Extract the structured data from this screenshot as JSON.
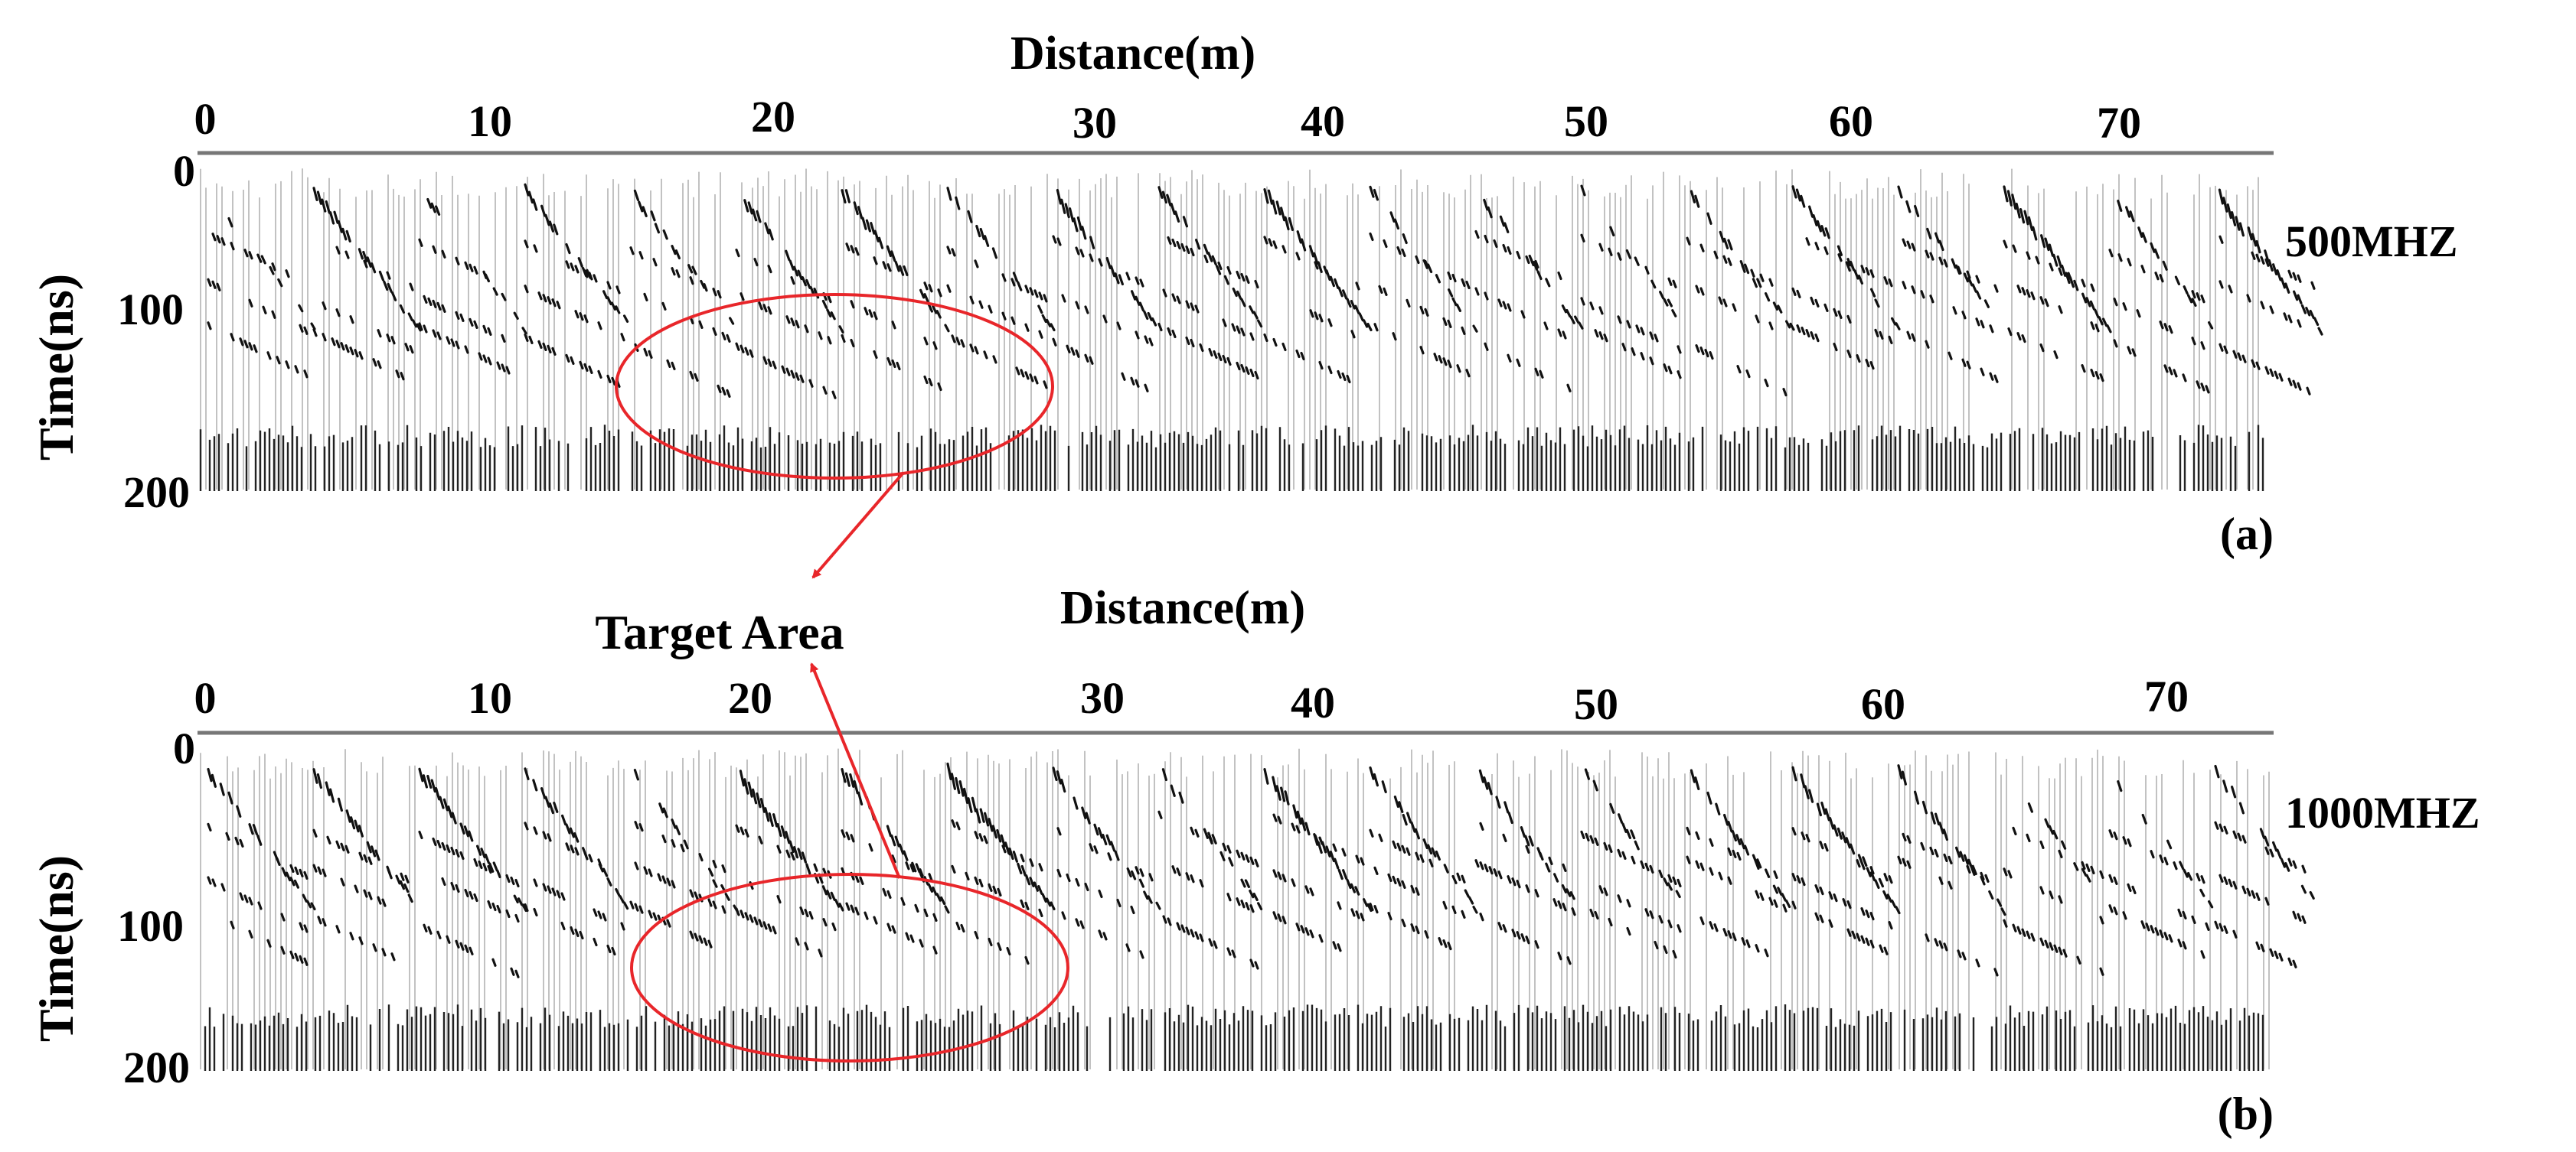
{
  "figure": {
    "panels": [
      {
        "id": "a",
        "panel_label": "(a)",
        "x_axis_title": "Distance(m)",
        "y_axis_title": "Time(ns)",
        "x_tick_labels": [
          "0",
          "10",
          "20",
          "30",
          "40",
          "50",
          "60",
          "70"
        ],
        "y_tick_labels": [
          "0",
          "100",
          "200"
        ],
        "frequency_label": "500MHZ",
        "x_range_m": [
          0,
          75
        ],
        "y_range_ns": [
          0,
          200
        ]
      },
      {
        "id": "b",
        "panel_label": "(b)",
        "x_axis_title": "Distance(m)",
        "y_axis_title": "Time(ns)",
        "x_tick_labels": [
          "0",
          "10",
          "20",
          "30",
          "40",
          "50",
          "60",
          "70"
        ],
        "y_tick_labels": [
          "0",
          "100",
          "200"
        ],
        "frequency_label": "1000MHZ",
        "x_range_m": [
          0,
          75
        ],
        "y_range_ns": [
          0,
          200
        ]
      }
    ],
    "annotation": {
      "label": "Target Area",
      "color": "#e8262a"
    }
  }
}
